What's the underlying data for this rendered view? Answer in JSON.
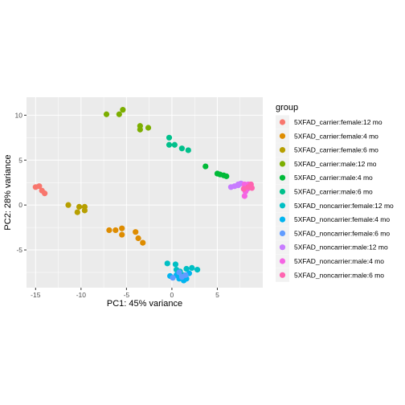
{
  "chart_data": {
    "type": "scatter",
    "xlabel": "PC1: 45% variance",
    "ylabel": "PC2: 28% variance",
    "xlim": [
      -16,
      10
    ],
    "ylim": [
      -9.2,
      12
    ],
    "x_ticks": [
      -15,
      -10,
      -5,
      0,
      5
    ],
    "y_ticks": [
      -5,
      0,
      5,
      10
    ],
    "grid": true,
    "legend_title": "group",
    "legend_position": "right",
    "series": [
      {
        "name": "5XFAD_carrier:female:12 mo",
        "color": "#F8766D",
        "points": [
          [
            -15.0,
            2.0
          ],
          [
            -14.6,
            2.1
          ],
          [
            -14.3,
            1.6
          ],
          [
            -14.0,
            1.3
          ]
        ]
      },
      {
        "name": "5XFAD_carrier:female:4 mo",
        "color": "#DE8C00",
        "points": [
          [
            -6.9,
            -2.8
          ],
          [
            -6.2,
            -2.8
          ],
          [
            -5.5,
            -2.6
          ],
          [
            -5.5,
            -3.3
          ],
          [
            -4.0,
            -3.0
          ],
          [
            -3.7,
            -3.7
          ],
          [
            -3.2,
            -4.2
          ]
        ]
      },
      {
        "name": "5XFAD_carrier:female:6 mo",
        "color": "#B79F00",
        "points": [
          [
            -11.4,
            0.0
          ],
          [
            -10.4,
            -0.8
          ],
          [
            -10.2,
            -0.2
          ],
          [
            -9.6,
            -0.2
          ],
          [
            -9.6,
            -0.6
          ]
        ]
      },
      {
        "name": "5XFAD_carrier:male:12 mo",
        "color": "#7CAE00",
        "points": [
          [
            -7.2,
            10.1
          ],
          [
            -5.8,
            10.1
          ],
          [
            -5.4,
            10.6
          ],
          [
            -3.5,
            8.8
          ],
          [
            -3.5,
            8.4
          ],
          [
            -2.6,
            8.6
          ]
        ]
      },
      {
        "name": "5XFAD_carrier:male:4 mo",
        "color": "#00BA38",
        "points": [
          [
            3.7,
            4.3
          ],
          [
            5.0,
            3.5
          ],
          [
            5.3,
            3.4
          ],
          [
            5.7,
            3.3
          ],
          [
            6.0,
            3.2
          ]
        ]
      },
      {
        "name": "5XFAD_carrier:male:6 mo",
        "color": "#00C08B",
        "points": [
          [
            -0.3,
            7.5
          ],
          [
            -0.3,
            6.7
          ],
          [
            0.3,
            6.7
          ],
          [
            1.1,
            6.3
          ],
          [
            1.8,
            6.1
          ]
        ]
      },
      {
        "name": "5XFAD_noncarrier:female:12 mo",
        "color": "#00BFC4",
        "points": [
          [
            -0.5,
            -6.5
          ],
          [
            0.4,
            -6.6
          ],
          [
            0.5,
            -7.2
          ],
          [
            0.9,
            -7.4
          ],
          [
            1.2,
            -7.8
          ],
          [
            1.6,
            -7.1
          ],
          [
            2.2,
            -7.0
          ],
          [
            2.8,
            -7.2
          ]
        ]
      },
      {
        "name": "5XFAD_noncarrier:female:4 mo",
        "color": "#00B4F0",
        "points": [
          [
            -0.2,
            -7.9
          ],
          [
            0.5,
            -7.8
          ],
          [
            0.8,
            -8.2
          ],
          [
            1.3,
            -8.4
          ],
          [
            1.6,
            -8.2
          ],
          [
            1.9,
            -7.6
          ]
        ]
      },
      {
        "name": "5XFAD_noncarrier:female:6 mo",
        "color": "#619CFF",
        "points": [
          [
            0.1,
            -8.1
          ],
          [
            0.8,
            -7.5
          ],
          [
            1.1,
            -8.0
          ],
          [
            1.5,
            -7.8
          ]
        ]
      },
      {
        "name": "5XFAD_noncarrier:male:12 mo",
        "color": "#C77CFF",
        "points": [
          [
            6.5,
            2.0
          ],
          [
            6.9,
            2.1
          ],
          [
            7.3,
            2.3
          ],
          [
            7.6,
            2.4
          ],
          [
            7.3,
            2.2
          ]
        ]
      },
      {
        "name": "5XFAD_noncarrier:male:4 mo",
        "color": "#F564E3",
        "points": [
          [
            8.0,
            1.0
          ],
          [
            8.1,
            1.5
          ],
          [
            8.3,
            1.8
          ],
          [
            8.0,
            2.3
          ],
          [
            8.4,
            2.3
          ]
        ]
      },
      {
        "name": "5XFAD_noncarrier:male:6 mo",
        "color": "#FF64B0",
        "points": [
          [
            7.9,
            1.8
          ],
          [
            8.4,
            2.0
          ],
          [
            8.7,
            2.3
          ],
          [
            8.8,
            1.9
          ]
        ]
      }
    ]
  }
}
